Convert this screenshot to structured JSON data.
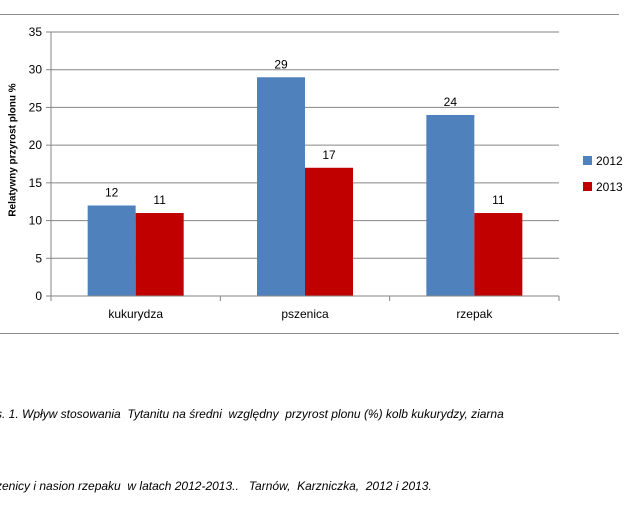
{
  "chart_data": {
    "type": "bar",
    "categories": [
      "kukurydza",
      "pszenica",
      "rzepak"
    ],
    "series": [
      {
        "name": "2012",
        "values": [
          12,
          29,
          24
        ],
        "color": "#4f81bd"
      },
      {
        "name": "2013",
        "values": [
          11,
          17,
          11
        ],
        "color": "#c00000"
      }
    ],
    "ylabel": "Relatywny przyrost  plonu %",
    "xlabel": "",
    "ylim": [
      0,
      35
    ],
    "yticks": [
      0,
      5,
      10,
      15,
      20,
      25,
      30,
      35
    ],
    "grid": true,
    "legend": "right",
    "data_labels": true
  },
  "caption": {
    "line1": "s. 1. Wpływ stosowania  Tytanitu na średni  względny  przyrost plonu (%) kolb kukurydzy, ziarna",
    "line2": "zenicy i nasion rzepaku  w latach 2012-2013..   Tarnów,  Karzniczka,  2012 i 2013."
  }
}
